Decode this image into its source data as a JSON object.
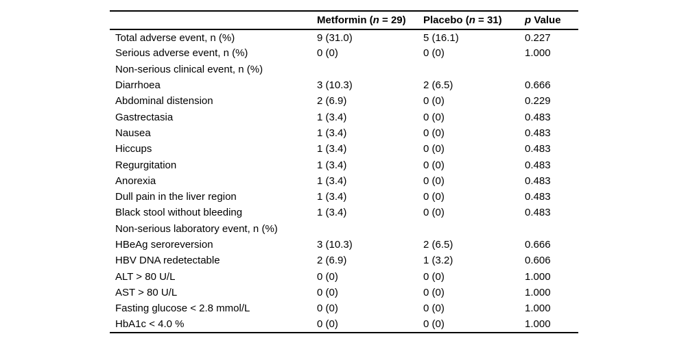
{
  "colors": {
    "background": "#ffffff",
    "text": "#000000",
    "rule": "#000000"
  },
  "table": {
    "columns": [
      {
        "name": "event",
        "segments": [
          {
            "text": "",
            "italic": false
          }
        ]
      },
      {
        "name": "metformin",
        "segments": [
          {
            "text": "Metformin (",
            "italic": false
          },
          {
            "text": "n",
            "italic": true
          },
          {
            "text": " = 29)",
            "italic": false
          }
        ]
      },
      {
        "name": "placebo",
        "segments": [
          {
            "text": "Placebo (",
            "italic": false
          },
          {
            "text": "n",
            "italic": true
          },
          {
            "text": " = 31)",
            "italic": false
          }
        ]
      },
      {
        "name": "p_value",
        "segments": [
          {
            "text": "p",
            "italic": true
          },
          {
            "text": " Value",
            "italic": false
          }
        ]
      }
    ],
    "rows": [
      {
        "label": "Total adverse event, n (%)",
        "metformin": "9 (31.0)",
        "placebo": "5 (16.1)",
        "p_value": "0.227",
        "section": false
      },
      {
        "label": "Serious adverse event, n (%)",
        "metformin": "0 (0)",
        "placebo": "0 (0)",
        "p_value": "1.000",
        "section": false
      },
      {
        "label": "Non-serious clinical event, n (%)",
        "metformin": "",
        "placebo": "",
        "p_value": "",
        "section": true
      },
      {
        "label": "Diarrhoea",
        "metformin": "3 (10.3)",
        "placebo": "2 (6.5)",
        "p_value": "0.666",
        "section": false
      },
      {
        "label": "Abdominal distension",
        "metformin": "2 (6.9)",
        "placebo": "0 (0)",
        "p_value": "0.229",
        "section": false
      },
      {
        "label": "Gastrectasia",
        "metformin": "1 (3.4)",
        "placebo": "0 (0)",
        "p_value": "0.483",
        "section": false
      },
      {
        "label": "Nausea",
        "metformin": "1 (3.4)",
        "placebo": "0 (0)",
        "p_value": "0.483",
        "section": false
      },
      {
        "label": "Hiccups",
        "metformin": "1 (3.4)",
        "placebo": "0 (0)",
        "p_value": "0.483",
        "section": false
      },
      {
        "label": "Regurgitation",
        "metformin": "1 (3.4)",
        "placebo": "0 (0)",
        "p_value": "0.483",
        "section": false
      },
      {
        "label": "Anorexia",
        "metformin": "1 (3.4)",
        "placebo": "0 (0)",
        "p_value": "0.483",
        "section": false
      },
      {
        "label": "Dull pain in the liver region",
        "metformin": "1 (3.4)",
        "placebo": "0 (0)",
        "p_value": "0.483",
        "section": false
      },
      {
        "label": "Black stool without bleeding",
        "metformin": "1 (3.4)",
        "placebo": "0 (0)",
        "p_value": "0.483",
        "section": false
      },
      {
        "label": "Non-serious laboratory event, n (%)",
        "metformin": "",
        "placebo": "",
        "p_value": "",
        "section": true
      },
      {
        "label": "HBeAg seroreversion",
        "metformin": "3 (10.3)",
        "placebo": "2 (6.5)",
        "p_value": "0.666",
        "section": false
      },
      {
        "label": "HBV DNA redetectable",
        "metformin": "2 (6.9)",
        "placebo": "1 (3.2)",
        "p_value": "0.606",
        "section": false
      },
      {
        "label": "ALT > 80 U/L",
        "metformin": "0 (0)",
        "placebo": "0 (0)",
        "p_value": "1.000",
        "section": false
      },
      {
        "label": "AST > 80 U/L",
        "metformin": "0 (0)",
        "placebo": "0 (0)",
        "p_value": "1.000",
        "section": false
      },
      {
        "label": "Fasting glucose < 2.8 mmol/L",
        "metformin": "0 (0)",
        "placebo": "0 (0)",
        "p_value": "1.000",
        "section": false
      },
      {
        "label": "HbA1c < 4.0 %",
        "metformin": "0 (0)",
        "placebo": "0 (0)",
        "p_value": "1.000",
        "section": false
      }
    ]
  }
}
